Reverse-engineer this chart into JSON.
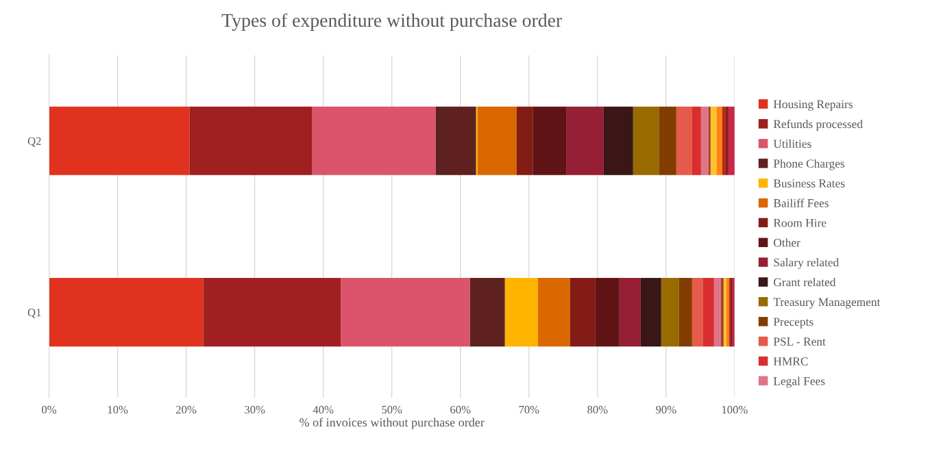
{
  "chart_data": {
    "type": "bar",
    "orientation": "horizontal",
    "stacked": true,
    "title": "Types of expenditure without purchase order",
    "xlabel": "% of invoices without purchase order",
    "categories": [
      "Q2",
      "Q1"
    ],
    "xlim": [
      0,
      100
    ],
    "xticks": [
      {
        "value": 0,
        "label": "0%"
      },
      {
        "value": 10,
        "label": "10%"
      },
      {
        "value": 20,
        "label": "20%"
      },
      {
        "value": 30,
        "label": "30%"
      },
      {
        "value": 40,
        "label": "40%"
      },
      {
        "value": 50,
        "label": "50%"
      },
      {
        "value": 60,
        "label": "60%"
      },
      {
        "value": 70,
        "label": "70%"
      },
      {
        "value": 80,
        "label": "80%"
      },
      {
        "value": 90,
        "label": "90%"
      },
      {
        "value": 100,
        "label": "100%"
      }
    ],
    "grid": "x",
    "legend": "right",
    "series": [
      {
        "name": "Housing Repairs",
        "color": "#e0321e",
        "values": [
          20.5,
          22.5
        ]
      },
      {
        "name": "Refunds processed",
        "color": "#a01f20",
        "values": [
          17.9,
          20.1
        ]
      },
      {
        "name": "Utilities",
        "color": "#db546c",
        "values": [
          18.0,
          18.8
        ]
      },
      {
        "name": "Phone Charges",
        "color": "#5e2120",
        "values": [
          5.9,
          5.1
        ]
      },
      {
        "name": "Business Rates",
        "color": "#ffb400",
        "values": [
          0.2,
          4.8
        ]
      },
      {
        "name": "Bailiff Fees",
        "color": "#da6800",
        "values": [
          5.7,
          4.7
        ]
      },
      {
        "name": "Room Hire",
        "color": "#821c15",
        "values": [
          2.4,
          3.7
        ]
      },
      {
        "name": "Other",
        "color": "#611416",
        "values": [
          4.9,
          3.5
        ]
      },
      {
        "name": "Salary related",
        "color": "#961f35",
        "values": [
          5.4,
          3.1
        ]
      },
      {
        "name": "Grant related",
        "color": "#3a1616",
        "values": [
          4.3,
          3.0
        ]
      },
      {
        "name": "Treasury Management",
        "color": "#976b00",
        "values": [
          3.8,
          2.6
        ]
      },
      {
        "name": "Precepts",
        "color": "#823c00",
        "values": [
          2.5,
          1.9
        ]
      },
      {
        "name": "PSL - Rent",
        "color": "#e55a4b",
        "values": [
          2.3,
          1.6
        ]
      },
      {
        "name": "HMRC",
        "color": "#d82e2e",
        "values": [
          1.3,
          1.6
        ]
      },
      {
        "name": "Legal Fees",
        "color": "#e07588",
        "values": [
          1.1,
          1.0
        ]
      },
      {
        "color": "#a0452a",
        "values": [
          0.3,
          0.4
        ]
      },
      {
        "color": "#ffc12e",
        "values": [
          0.9,
          0.4
        ]
      },
      {
        "color": "#ff8214",
        "values": [
          0.8,
          0.4
        ]
      },
      {
        "color": "#b02a1d",
        "values": [
          0.5,
          0.2
        ]
      },
      {
        "color": "#8c1c1c",
        "values": [
          0.4,
          0.3
        ]
      },
      {
        "color": "#c8284a",
        "values": [
          0.9,
          0.3
        ]
      }
    ]
  }
}
